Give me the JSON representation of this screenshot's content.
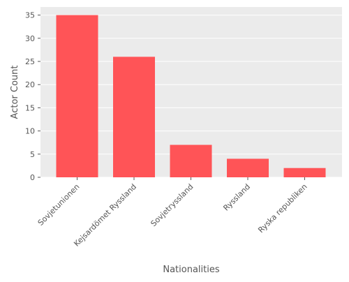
{
  "chart_data": {
    "type": "bar",
    "title": "",
    "xlabel": "Nationalities",
    "ylabel": "Actor Count",
    "categories": [
      "Sovjetunionen",
      "Kejsardömet Ryssland",
      "Sovjetryssland",
      "Ryssland",
      "Ryska republiken"
    ],
    "values": [
      35,
      26,
      7,
      4,
      2
    ],
    "ylim": [
      0,
      36.75
    ],
    "yticks": [
      0,
      5,
      10,
      15,
      20,
      25,
      30,
      35
    ],
    "grid": true,
    "legend": "none",
    "colors": {
      "bar": "#ff5457",
      "panel": "#ebebeb",
      "grid": "#ffffff",
      "text": "#555555"
    }
  }
}
